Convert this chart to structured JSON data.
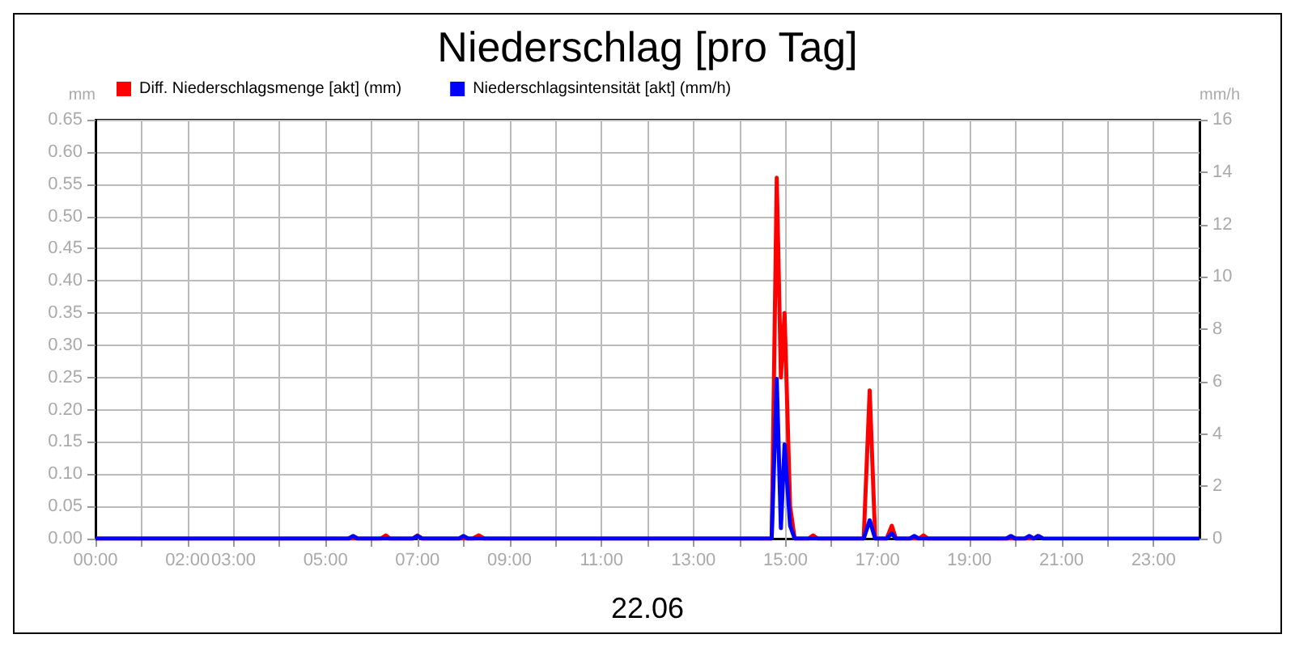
{
  "chart_data": {
    "type": "line",
    "title": "Niederschlag [pro Tag]",
    "xlabel": "22.06",
    "ylabel": "mm",
    "y2label": "mm/h",
    "xlim": [
      0,
      24
    ],
    "xticks": [
      {
        "value": 0,
        "label": "00:00"
      },
      {
        "value": 1,
        "label": null
      },
      {
        "value": 2,
        "label": "02:00"
      },
      {
        "value": 3,
        "label": "03:00"
      },
      {
        "value": 4,
        "label": null
      },
      {
        "value": 5,
        "label": "05:00"
      },
      {
        "value": 6,
        "label": null
      },
      {
        "value": 7,
        "label": "07:00"
      },
      {
        "value": 8,
        "label": null
      },
      {
        "value": 9,
        "label": "09:00"
      },
      {
        "value": 10,
        "label": null
      },
      {
        "value": 11,
        "label": "11:00"
      },
      {
        "value": 12,
        "label": null
      },
      {
        "value": 13,
        "label": "13:00"
      },
      {
        "value": 14,
        "label": null
      },
      {
        "value": 15,
        "label": "15:00"
      },
      {
        "value": 16,
        "label": null
      },
      {
        "value": 17,
        "label": "17:00"
      },
      {
        "value": 18,
        "label": null
      },
      {
        "value": 19,
        "label": "19:00"
      },
      {
        "value": 20,
        "label": null
      },
      {
        "value": 21,
        "label": "21:00"
      },
      {
        "value": 22,
        "label": null
      },
      {
        "value": 23,
        "label": "23:00"
      }
    ],
    "ylim": [
      0,
      0.65
    ],
    "yticks": [
      {
        "value": 0,
        "label": "0.00"
      },
      0.05,
      {
        "value": 0.1,
        "label": "0.10"
      },
      0.15,
      {
        "value": 0.2,
        "label": "0.20"
      },
      0.25,
      {
        "value": 0.3,
        "label": "0.30"
      },
      0.35,
      {
        "value": 0.4,
        "label": "0.40"
      },
      0.45,
      {
        "value": 0.5,
        "label": "0.50"
      },
      0.55,
      {
        "value": 0.6,
        "label": "0.60"
      },
      0.65
    ],
    "y2lim": [
      0,
      16
    ],
    "y2ticks": [
      0,
      2,
      4,
      6,
      8,
      10,
      12,
      14,
      16
    ],
    "grid": true,
    "legend": "top left",
    "marker": "none",
    "line_style": "solid",
    "series": [
      {
        "name": "Diff. Niederschlagsmenge [akt] (mm)",
        "color": "#ff0000",
        "x": [
          0,
          6.2,
          6.31,
          6.4,
          6.9,
          7.0,
          7.1,
          8.2,
          8.33,
          8.45,
          14.7,
          14.81,
          14.9,
          14.98,
          15.1,
          15.2,
          15.5,
          15.6,
          15.7,
          16.7,
          16.83,
          16.95,
          17.2,
          17.31,
          17.4,
          17.9,
          18.0,
          18.1,
          20.4,
          20.5
        ],
        "values": [
          0,
          0,
          0.005,
          0,
          0,
          0.005,
          0,
          0,
          0.005,
          0,
          0,
          0.56,
          0.25,
          0.35,
          0.05,
          0,
          0,
          0.005,
          0,
          0,
          0.23,
          0,
          0,
          0.02,
          0,
          0,
          0.005,
          0,
          0,
          0.005
        ]
      },
      {
        "name": "Niederschlagsintensität [akt] (mm/h)",
        "color": "#0000ff",
        "axis": "y2",
        "x": [
          0,
          5.5,
          5.6,
          5.7,
          6.9,
          7.0,
          7.1,
          7.9,
          8.0,
          8.1,
          14.7,
          14.81,
          14.9,
          14.98,
          15.1,
          15.2,
          16.7,
          16.83,
          16.95,
          17.2,
          17.31,
          17.4,
          17.7,
          17.8,
          17.9,
          19.8,
          19.9,
          20.0,
          20.2,
          20.3,
          20.4,
          20.5,
          20.6,
          24
        ],
        "values": [
          0,
          0,
          0.1,
          0,
          0,
          0.1,
          0,
          0,
          0.1,
          0,
          0,
          6.1,
          0.4,
          3.6,
          0.5,
          0,
          0,
          0.7,
          0,
          0,
          0.2,
          0,
          0,
          0.1,
          0,
          0,
          0.1,
          0,
          0,
          0.1,
          0,
          0.1,
          0,
          0
        ]
      }
    ]
  }
}
